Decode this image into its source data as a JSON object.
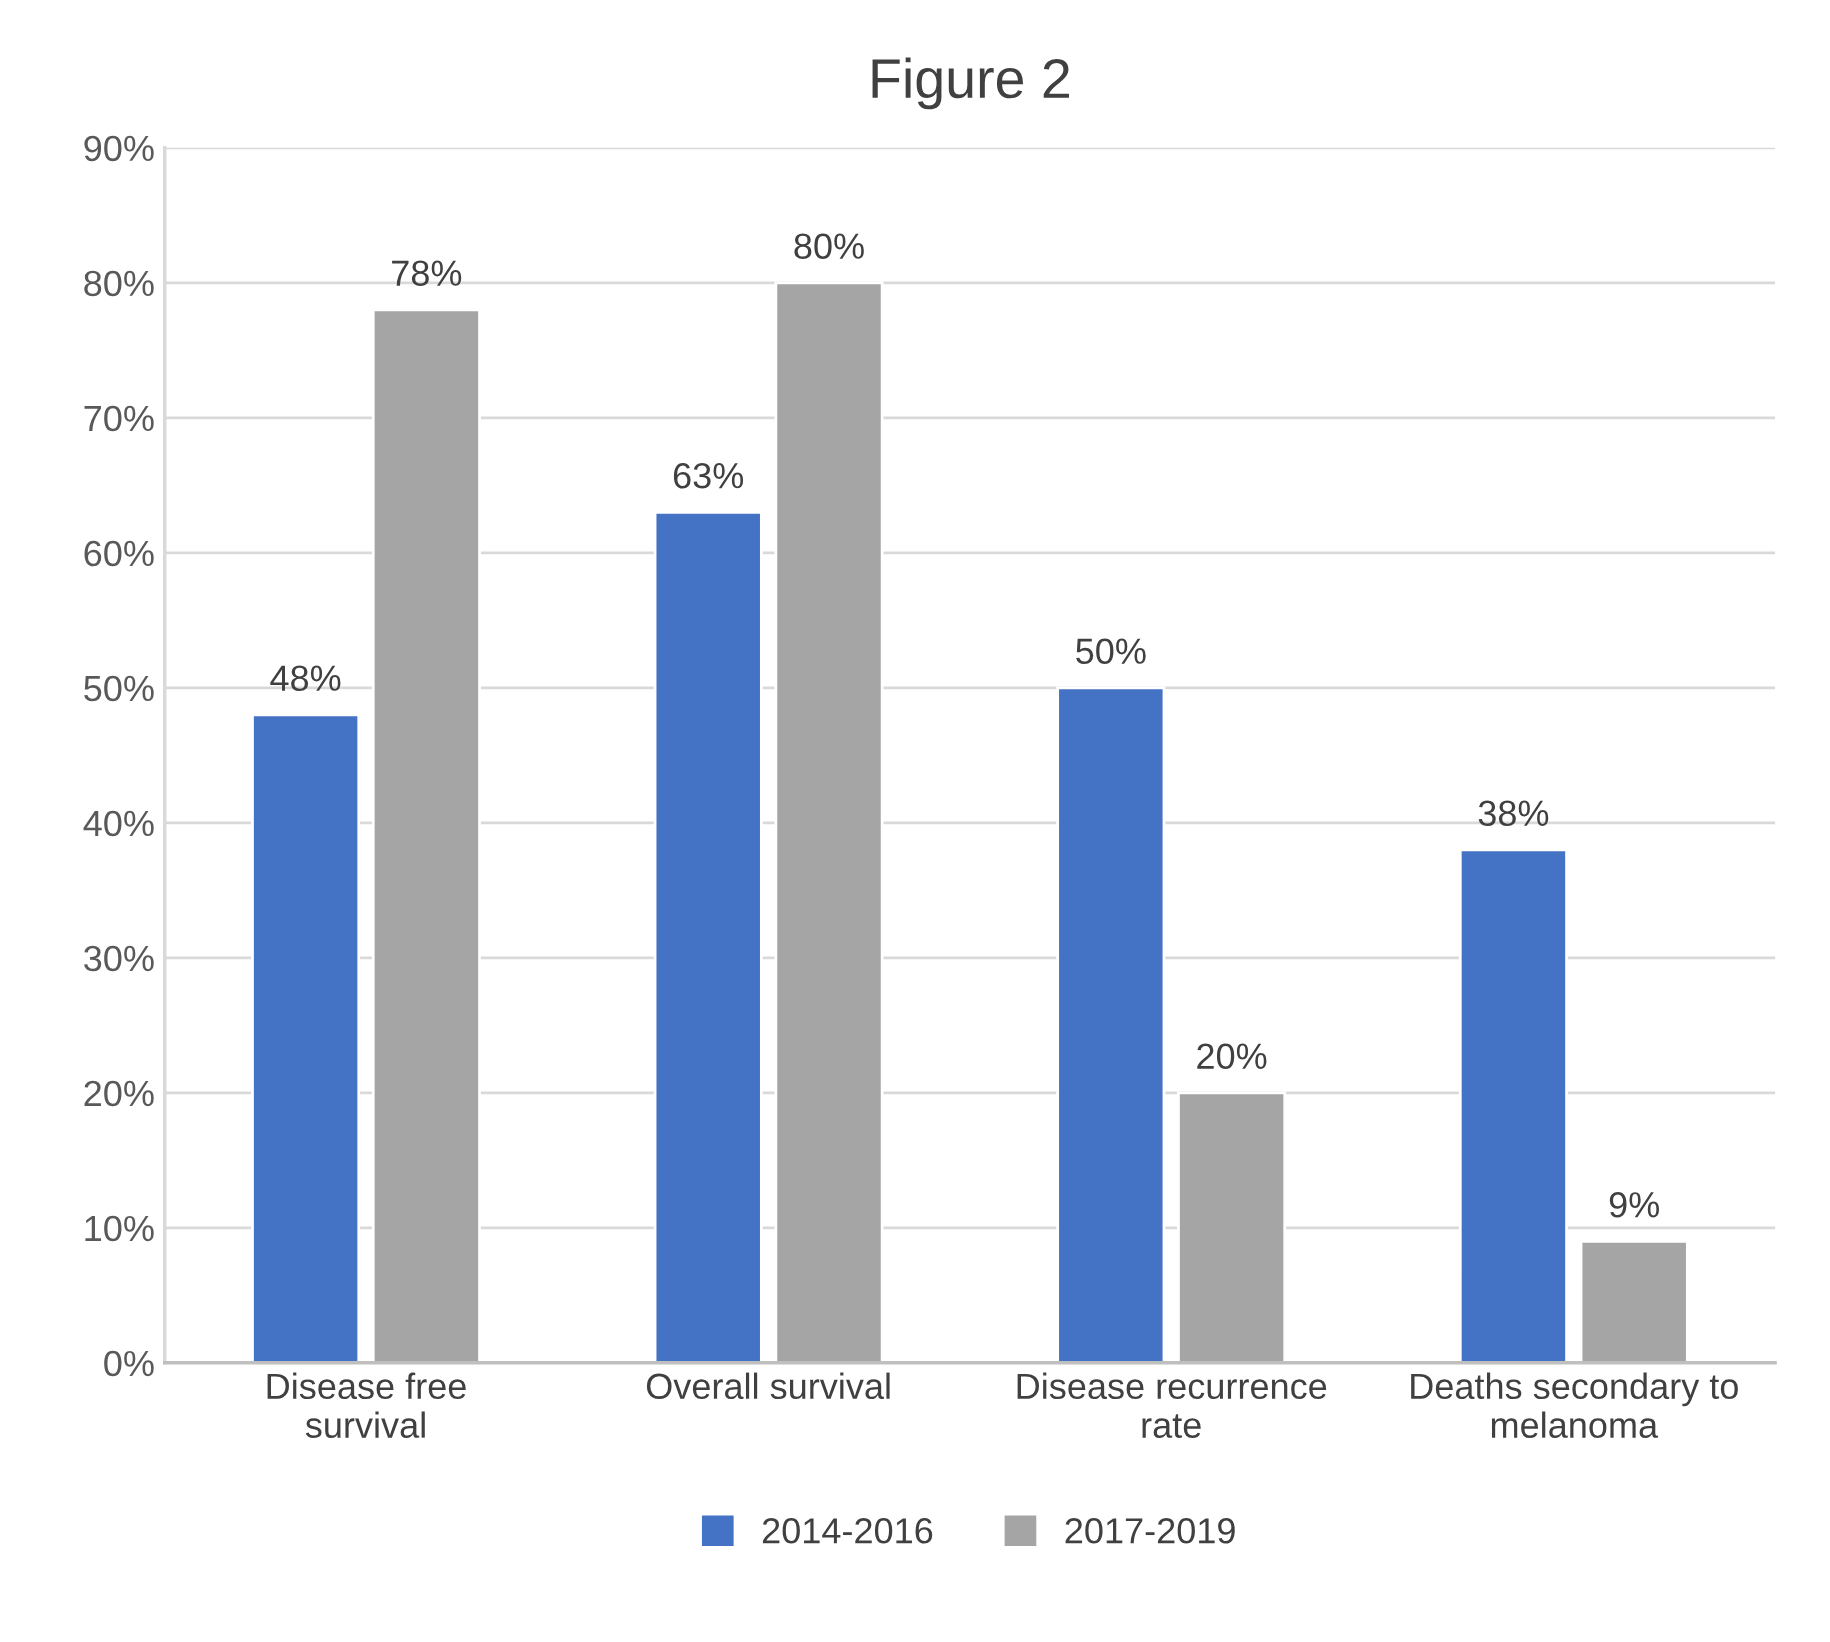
{
  "chart_data": {
    "type": "bar",
    "title": "Figure 2",
    "categories": [
      "Disease free survival",
      "Overall survival",
      "Disease recurrence rate",
      "Deaths secondary to melanoma"
    ],
    "series": [
      {
        "name": "2014-2016",
        "color": "#4472c4",
        "values": [
          48,
          63,
          50,
          38
        ],
        "value_labels": [
          "48%",
          "63%",
          "50%",
          "38%"
        ]
      },
      {
        "name": "2017-2019",
        "color": "#a5a5a5",
        "values": [
          78,
          80,
          20,
          9
        ],
        "value_labels": [
          "78%",
          "80%",
          "20%",
          "9%"
        ]
      }
    ],
    "ylim": [
      0,
      90
    ],
    "yticks": [
      {
        "value": 0,
        "label": "0%"
      },
      {
        "value": 10,
        "label": "10%"
      },
      {
        "value": 20,
        "label": "20%"
      },
      {
        "value": 30,
        "label": "30%"
      },
      {
        "value": 40,
        "label": "40%"
      },
      {
        "value": 50,
        "label": "50%"
      },
      {
        "value": 60,
        "label": "60%"
      },
      {
        "value": 70,
        "label": "70%"
      },
      {
        "value": 80,
        "label": "80%"
      },
      {
        "value": 90,
        "label": "90%"
      }
    ],
    "grid": "y",
    "legend": "bottom"
  }
}
